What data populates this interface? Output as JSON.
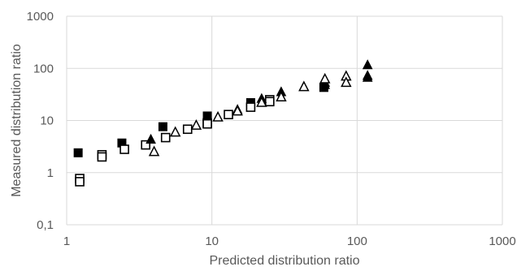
{
  "chart_data": {
    "type": "scatter",
    "title": "",
    "xlabel": "Predicted distribution ratio",
    "ylabel": "Measured distribution ratio",
    "x_scale": "log",
    "y_scale": "log",
    "xlim": [
      1,
      1000
    ],
    "ylim": [
      0.1,
      1000
    ],
    "grid": true,
    "legend": "none",
    "x_ticks": [
      {
        "value": 1,
        "label": "1"
      },
      {
        "value": 10,
        "label": "10"
      },
      {
        "value": 100,
        "label": "100"
      },
      {
        "value": 1000,
        "label": "1000"
      }
    ],
    "y_ticks": [
      {
        "value": 0.1,
        "label": "0,1"
      },
      {
        "value": 1,
        "label": "1"
      },
      {
        "value": 10,
        "label": "10"
      },
      {
        "value": 100,
        "label": "100"
      },
      {
        "value": 1000,
        "label": "1000"
      }
    ],
    "colors": {
      "marker": "#000000",
      "grid": "#d9d9d9",
      "text": "#595959"
    },
    "series": [
      {
        "marker": "filled-square",
        "points": [
          [
            1.2,
            2.4
          ],
          [
            2.4,
            3.7
          ],
          [
            4.6,
            7.6
          ],
          [
            9.3,
            12.2
          ],
          [
            18.5,
            22
          ],
          [
            59,
            43
          ]
        ]
      },
      {
        "marker": "open-square",
        "points": [
          [
            1.23,
            0.77
          ],
          [
            1.23,
            0.67
          ],
          [
            1.75,
            2.2
          ],
          [
            1.75,
            2.0
          ],
          [
            2.5,
            2.8
          ],
          [
            3.5,
            3.4
          ],
          [
            4.8,
            4.7
          ],
          [
            6.8,
            6.8
          ],
          [
            9.3,
            9.0
          ],
          [
            9.3,
            8.6
          ],
          [
            13,
            13
          ],
          [
            18.5,
            18
          ],
          [
            25,
            25
          ],
          [
            25,
            23
          ]
        ]
      },
      {
        "marker": "filled-triangle",
        "points": [
          [
            3.8,
            4.3
          ],
          [
            15,
            16
          ],
          [
            22,
            26
          ],
          [
            30,
            35
          ],
          [
            60,
            48
          ],
          [
            60,
            53
          ],
          [
            118,
            115
          ],
          [
            118,
            72
          ],
          [
            118,
            66
          ]
        ]
      },
      {
        "marker": "open-triangle",
        "points": [
          [
            4.0,
            2.5
          ],
          [
            5.6,
            5.9
          ],
          [
            7.8,
            8.0
          ],
          [
            11,
            11.5
          ],
          [
            15,
            15
          ],
          [
            22,
            22
          ],
          [
            30,
            28
          ],
          [
            43,
            44
          ],
          [
            60,
            62
          ],
          [
            84,
            70
          ],
          [
            84,
            53
          ]
        ]
      }
    ]
  }
}
